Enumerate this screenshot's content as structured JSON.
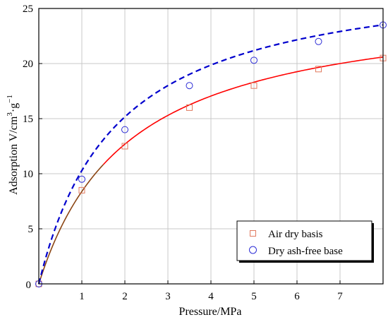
{
  "chart_data": {
    "type": "scatter",
    "xlabel": "Pressure/MPa",
    "ylabel_main": "Adsorption V/cm",
    "ylabel_sup1": "3",
    "ylabel_mid": "·g",
    "ylabel_sup2": "−1",
    "xlim": [
      0,
      8
    ],
    "ylim": [
      0,
      25
    ],
    "x_ticks": [
      1,
      2,
      3,
      4,
      5,
      6,
      7
    ],
    "y_ticks": [
      0,
      5,
      10,
      15,
      20,
      25
    ],
    "origin_label": "0",
    "grid": true,
    "legend_position": "bottom-right",
    "series": [
      {
        "name": "Air dry basis",
        "marker": "square",
        "marker_color": "#e07a5f",
        "fit_color": "#ff0000",
        "fit_color_low": "#8b4513",
        "fit_style": "solid",
        "x": [
          0,
          1,
          2,
          3.5,
          5,
          6.5,
          8
        ],
        "y": [
          0,
          8.5,
          12.5,
          16.0,
          18.0,
          19.5,
          20.5
        ],
        "fit_vl": 26.0,
        "fit_pl": 2.1
      },
      {
        "name": "Dry ash-free base",
        "marker": "circle",
        "marker_color": "#2d2dd6",
        "fit_color": "#0000cd",
        "fit_style": "dashed",
        "x": [
          0,
          1,
          2,
          3.5,
          5,
          6.5,
          8
        ],
        "y": [
          0,
          9.5,
          14.0,
          18.0,
          20.3,
          22.0,
          23.5
        ],
        "fit_vl": 28.8,
        "fit_pl": 1.8
      }
    ]
  }
}
